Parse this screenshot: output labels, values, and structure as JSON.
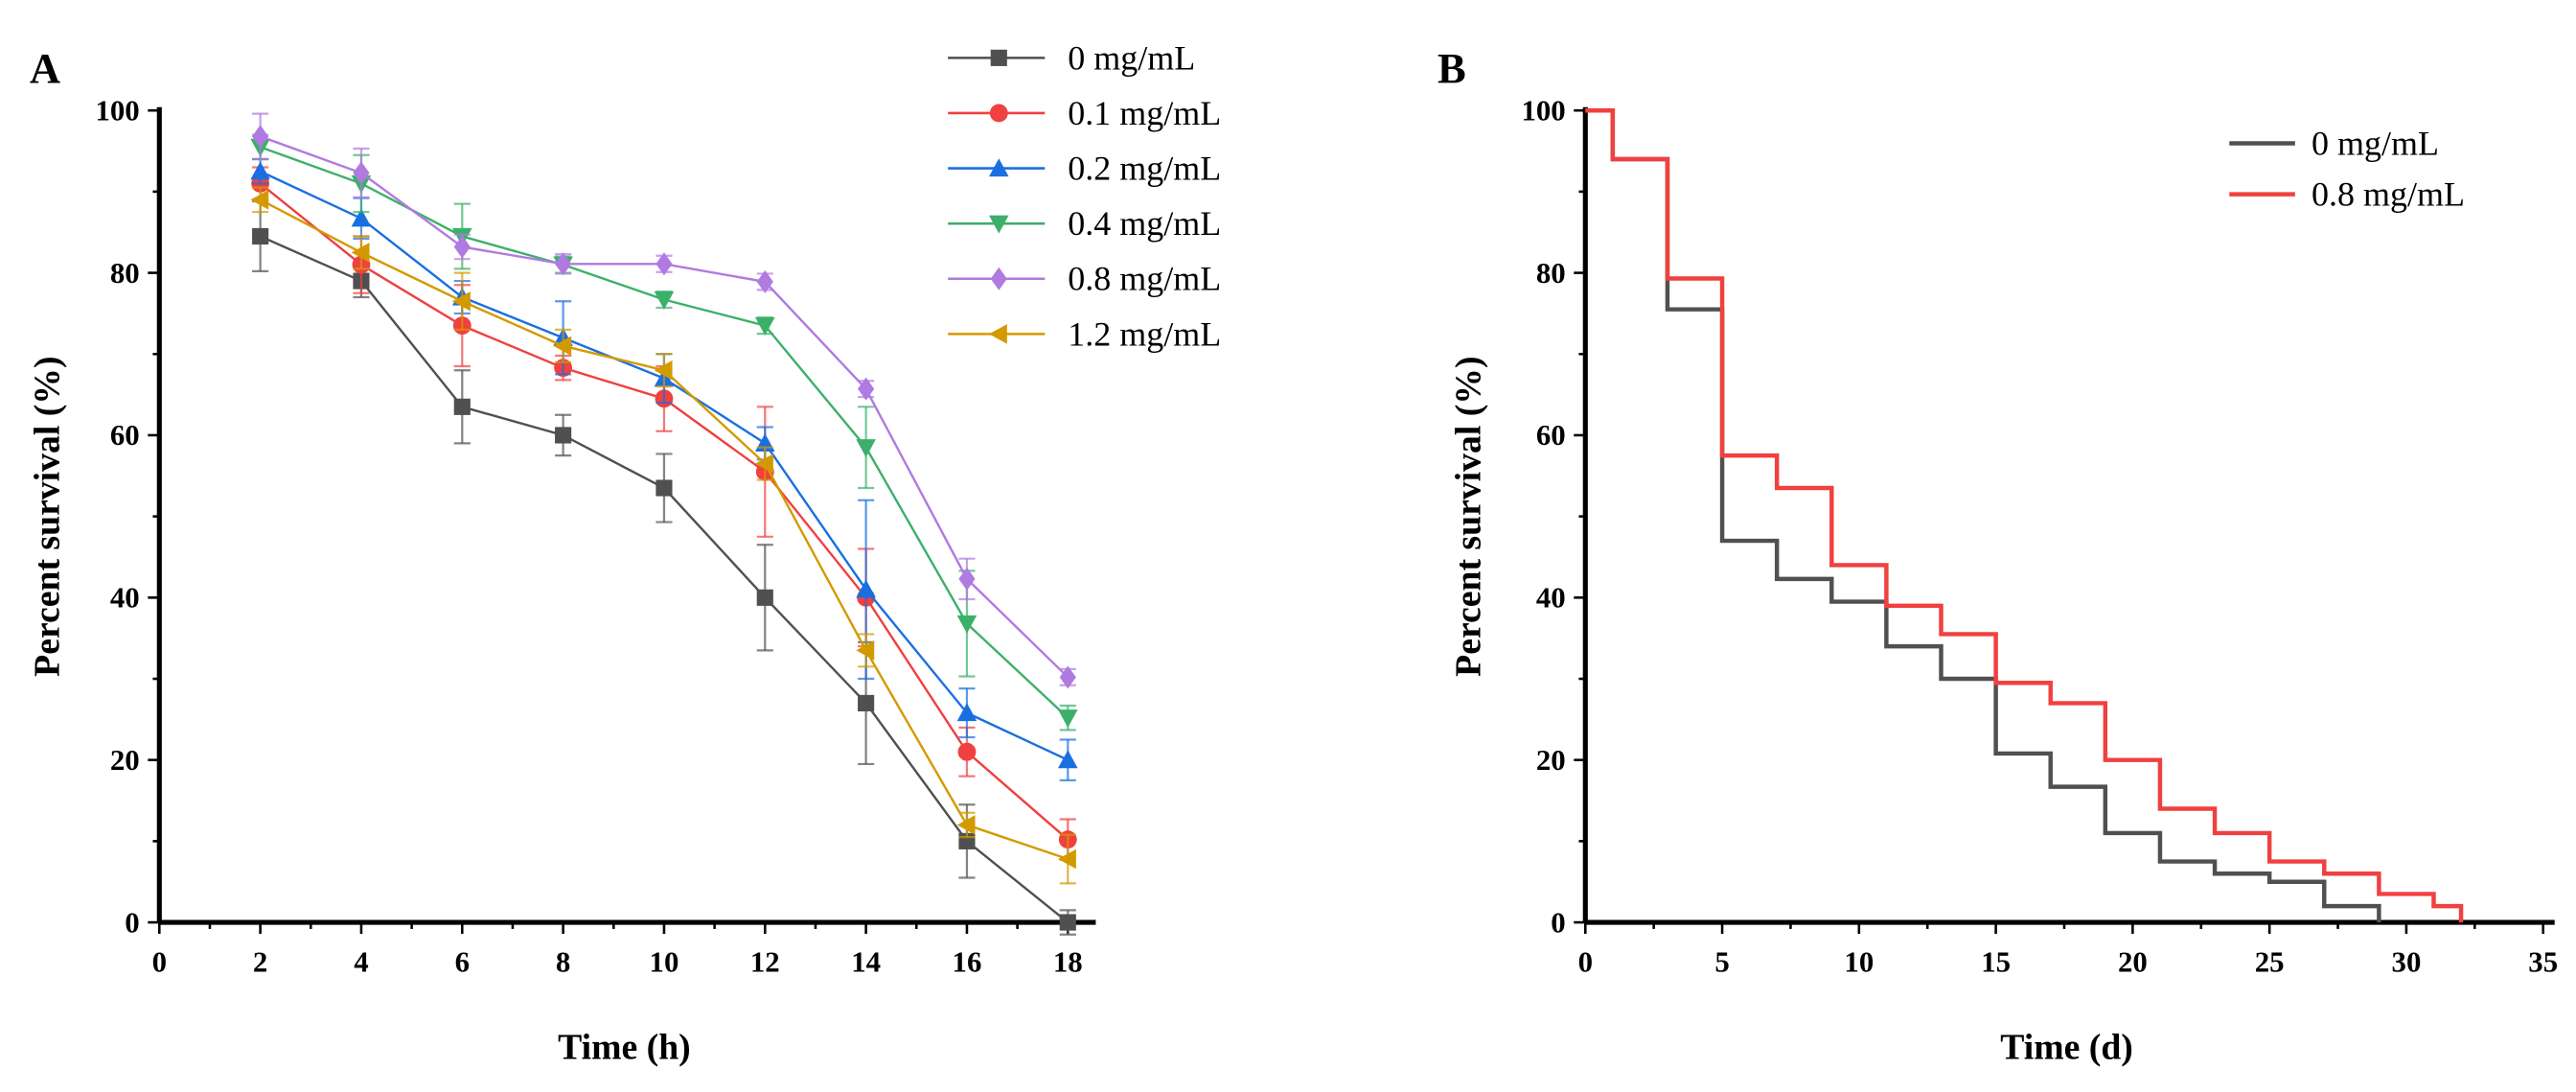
{
  "chart_data": [
    {
      "panel_label": "A",
      "type": "line",
      "xlabel": "Time (h)",
      "ylabel": "Percent survival (%)",
      "xlim": [
        0,
        18
      ],
      "ylim": [
        0,
        100
      ],
      "x_ticks": [
        0,
        2,
        4,
        6,
        8,
        10,
        12,
        14,
        16,
        18
      ],
      "y_ticks": [
        0,
        20,
        40,
        60,
        80,
        100
      ],
      "grid": false,
      "legend_position": "top-right",
      "error_bars": true,
      "x": [
        2,
        4,
        6,
        8,
        10,
        12,
        14,
        16,
        18
      ],
      "series": [
        {
          "name": "0 mg/mL",
          "color": "#505050",
          "marker": "square",
          "values": [
            84.5,
            79,
            63.5,
            60,
            53.5,
            40,
            27,
            10,
            0
          ],
          "errors": [
            4.3,
            2,
            4.5,
            2.5,
            4.2,
            6.5,
            7.5,
            4.5,
            1.5
          ]
        },
        {
          "name": "0.1 mg/mL",
          "color": "#f04040",
          "marker": "circle",
          "values": [
            91,
            81,
            73.5,
            68.3,
            64.5,
            55.5,
            40,
            21,
            10.2
          ],
          "errors": [
            2,
            3.5,
            5,
            1.5,
            4,
            8,
            6,
            3,
            2.5
          ]
        },
        {
          "name": "0.2 mg/mL",
          "color": "#1a6fe0",
          "marker": "triangle-up",
          "values": [
            92.5,
            86.7,
            77,
            72,
            67,
            59,
            41,
            25.8,
            20
          ],
          "errors": [
            1.5,
            2.5,
            2,
            4.5,
            3,
            2,
            11,
            3,
            2.5
          ]
        },
        {
          "name": "0.4 mg/mL",
          "color": "#3cb06a",
          "marker": "triangle-down",
          "values": [
            95.5,
            91,
            84.5,
            81,
            76.7,
            73.5,
            58.5,
            36.8,
            25.2
          ],
          "errors": [
            1.5,
            3.5,
            4,
            1,
            1,
            1,
            5,
            6.5,
            1.5
          ]
        },
        {
          "name": "0.8 mg/mL",
          "color": "#b07ae0",
          "marker": "diamond",
          "values": [
            96.8,
            92.3,
            83.2,
            81.1,
            81.1,
            78.9,
            65.7,
            42.3,
            30.2
          ],
          "errors": [
            2.8,
            3,
            1.5,
            1.2,
            1,
            1,
            1,
            2.5,
            1
          ]
        },
        {
          "name": "1.2 mg/mL",
          "color": "#d39a00",
          "marker": "triangle-left",
          "values": [
            89,
            82.5,
            76.5,
            71,
            68,
            56.5,
            33.5,
            12,
            7.8
          ],
          "errors": [
            1.5,
            2,
            3.5,
            2,
            2,
            2,
            2,
            1.5,
            3
          ]
        }
      ]
    },
    {
      "panel_label": "B",
      "type": "line",
      "step": true,
      "xlabel": "Time (d)",
      "ylabel": "Percent survival (%)",
      "xlim": [
        0,
        35
      ],
      "ylim": [
        0,
        100
      ],
      "x_ticks": [
        0,
        5,
        10,
        15,
        20,
        25,
        30,
        35
      ],
      "y_ticks": [
        0,
        20,
        40,
        60,
        80,
        100
      ],
      "grid": false,
      "legend_position": "top-right",
      "series": [
        {
          "name": "0 mg/mL",
          "color": "#505050",
          "x": [
            0,
            1,
            3,
            5,
            7,
            9,
            11,
            13,
            15,
            17,
            19,
            21,
            23,
            25,
            27,
            29
          ],
          "values": [
            100,
            94,
            75.5,
            47,
            42.3,
            39.5,
            34,
            30,
            20.8,
            16.7,
            11,
            7.5,
            6,
            5,
            2,
            0
          ]
        },
        {
          "name": "0.8 mg/mL",
          "color": "#f04040",
          "x": [
            0,
            1,
            3,
            5,
            7,
            9,
            11,
            13,
            15,
            17,
            19,
            21,
            23,
            25,
            27,
            29,
            31,
            32
          ],
          "values": [
            100,
            94,
            79.3,
            57.5,
            53.5,
            44,
            39,
            35.5,
            29.5,
            27,
            20,
            14,
            11,
            7.5,
            6,
            3.5,
            2,
            0
          ]
        }
      ]
    }
  ]
}
